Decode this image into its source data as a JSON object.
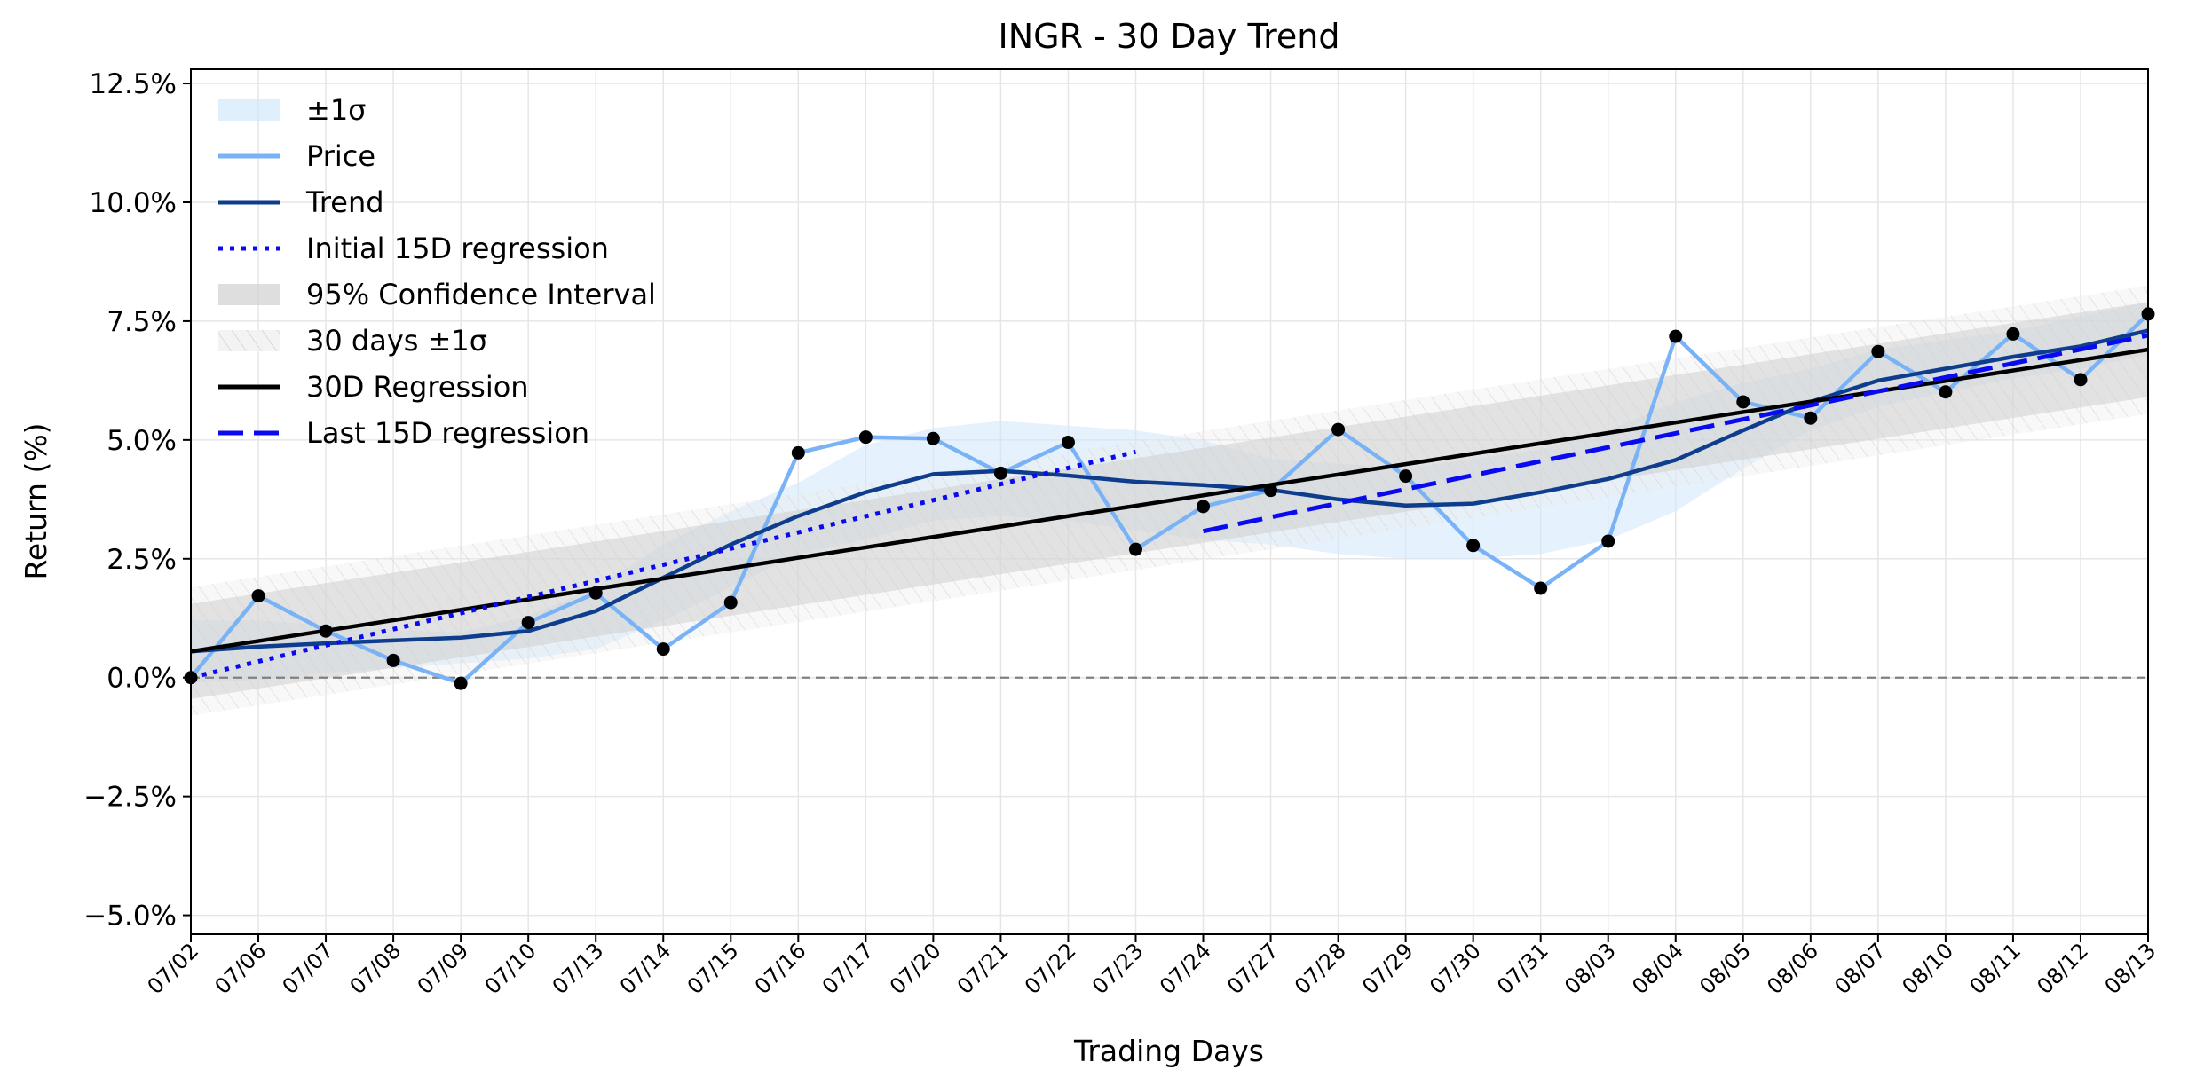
{
  "chart_data": {
    "type": "line",
    "title": "INGR - 30 Day Trend",
    "xlabel": "Trading Days",
    "ylabel": "Return (%)",
    "ylim": [
      -5.4,
      12.8
    ],
    "y_ticks": [
      -5.0,
      -2.5,
      0.0,
      2.5,
      5.0,
      7.5,
      10.0,
      12.5
    ],
    "y_tick_labels": [
      "−5.0%",
      "−2.5%",
      "0.0%",
      "2.5%",
      "5.0%",
      "7.5%",
      "10.0%",
      "12.5%"
    ],
    "grid": true,
    "legend_position": "top-left",
    "categories": [
      "07/02",
      "07/06",
      "07/07",
      "07/08",
      "07/09",
      "07/10",
      "07/13",
      "07/14",
      "07/15",
      "07/16",
      "07/17",
      "07/20",
      "07/21",
      "07/22",
      "07/23",
      "07/24",
      "07/27",
      "07/28",
      "07/29",
      "07/30",
      "07/31",
      "08/03",
      "08/04",
      "08/05",
      "08/06",
      "08/07",
      "08/10",
      "08/11",
      "08/12",
      "08/13"
    ],
    "legend": [
      "±1σ",
      "Price",
      "Trend",
      "Initial 15D regression",
      "95% Confidence Interval",
      "30 days ±1σ",
      "30D Regression",
      "Last 15D regression"
    ],
    "series": [
      {
        "name": "Price",
        "values": [
          0.0,
          1.72,
          0.98,
          0.36,
          -0.12,
          1.16,
          1.78,
          0.6,
          1.58,
          4.73,
          5.06,
          5.03,
          4.3,
          4.95,
          2.7,
          3.6,
          3.94,
          5.22,
          4.24,
          2.78,
          1.88,
          2.87,
          7.18,
          5.8,
          5.46,
          6.86,
          6.01,
          7.23,
          6.27,
          7.65
        ]
      },
      {
        "name": "Trend",
        "values": [
          0.55,
          0.65,
          0.72,
          0.78,
          0.84,
          0.98,
          1.4,
          2.1,
          2.8,
          3.4,
          3.9,
          4.28,
          4.35,
          4.25,
          4.12,
          4.05,
          3.95,
          3.75,
          3.62,
          3.66,
          3.9,
          4.18,
          4.58,
          5.2,
          5.8,
          6.25,
          6.5,
          6.75,
          6.97,
          7.3
        ]
      },
      {
        "name": "±1σ",
        "upper": [
          1.2,
          1.2,
          1.1,
          1.0,
          0.95,
          1.3,
          1.9,
          2.8,
          3.5,
          4.1,
          4.9,
          5.25,
          5.4,
          5.3,
          5.2,
          5.0,
          4.6,
          4.5,
          4.4,
          4.6,
          4.8,
          5.2,
          5.8,
          6.2,
          6.5,
          6.9,
          7.1,
          7.3,
          7.6,
          7.9
        ],
        "lower": [
          -0.1,
          -0.05,
          0.1,
          0.2,
          0.3,
          0.4,
          0.6,
          1.2,
          1.9,
          2.6,
          2.9,
          3.3,
          3.4,
          3.3,
          3.1,
          2.9,
          2.8,
          2.6,
          2.5,
          2.5,
          2.6,
          2.9,
          3.5,
          4.4,
          5.2,
          5.7,
          6.0,
          6.3,
          6.5,
          6.8
        ]
      },
      {
        "name": "30D Regression",
        "start": 0.55,
        "end": 6.9
      },
      {
        "name": "95% Confidence Interval",
        "half_width": 1.0
      },
      {
        "name": "30 days ±1σ",
        "half_width": 1.35
      },
      {
        "name": "Initial 15D regression",
        "start_index": 0,
        "end_index": 14,
        "start": 0.0,
        "end": 4.75
      },
      {
        "name": "Last 15D regression",
        "start_index": 15,
        "end_index": 29,
        "start": 3.08,
        "end": 7.2
      }
    ],
    "baseline": 0.0,
    "colors": {
      "price": "#7ab3f5",
      "trend": "#0d3d8c",
      "sigma_band": "#cfe6fb",
      "ci_band": "#d0d0d0",
      "regression": "#000000",
      "segment_regression": "#0a0af0",
      "markers": "#000000",
      "zero_line": "#808080",
      "grid": "#e6e6e6"
    }
  }
}
